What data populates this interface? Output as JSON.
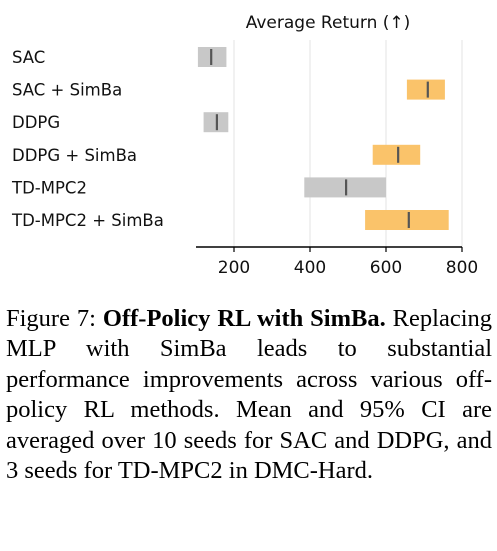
{
  "chart_data": {
    "type": "interval",
    "title": "Average Return (↑)",
    "xlabel": "",
    "ylabel": "",
    "xlim": [
      100,
      800
    ],
    "xticks": [
      200,
      400,
      600,
      800
    ],
    "grid": true,
    "categories": [
      "SAC",
      "SAC + SimBa",
      "DDPG",
      "DDPG + SimBa",
      "TD-MPC2",
      "TD-MPC2 + SimBa"
    ],
    "mean": [
      140,
      710,
      155,
      632,
      495,
      660
    ],
    "ci_low": [
      105,
      655,
      120,
      565,
      385,
      545
    ],
    "ci_high": [
      180,
      755,
      185,
      690,
      600,
      765
    ],
    "colors": {
      "baseline": "#c8c8c8",
      "simba": "#fac36a",
      "mean_line": "#555555",
      "grid": "#e3e3e3",
      "axis": "#000000"
    }
  },
  "caption": {
    "label": "Figure 7:",
    "title": "Off-Policy RL with SimBa.",
    "text": "Replacing MLP with SimBa leads to substantial performance improvements across various off-policy RL methods. Mean and 95% CI are averaged over 10 seeds for SAC and DDPG, and 3 seeds for TD-MPC2 in DMC-Hard."
  }
}
